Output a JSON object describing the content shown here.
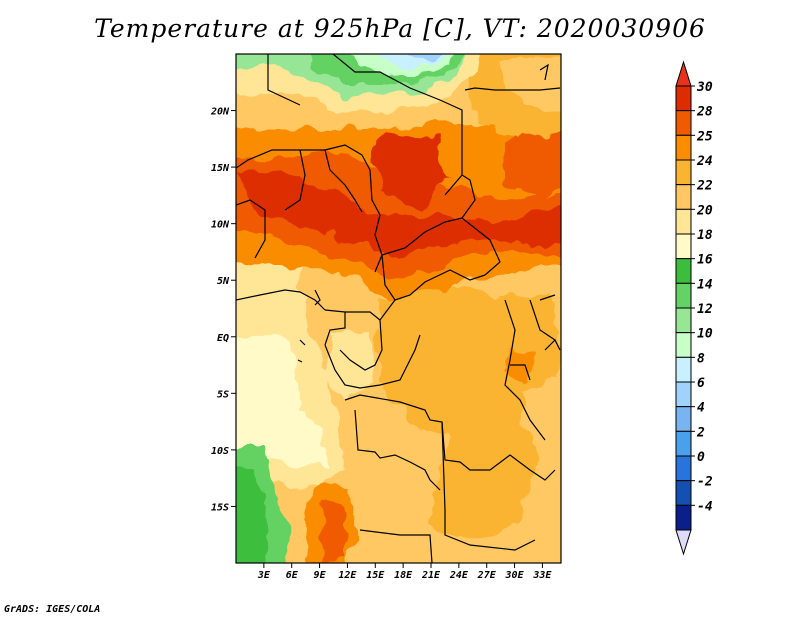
{
  "title": "Temperature at 925hPa [C], VT: 2020030906",
  "footer": "GrADS: IGES/COLA",
  "map": {
    "lon_ticks": [
      "3E",
      "6E",
      "9E",
      "12E",
      "15E",
      "18E",
      "21E",
      "24E",
      "27E",
      "30E",
      "33E"
    ],
    "lat_ticks": [
      "20N",
      "15N",
      "10N",
      "5N",
      "EQ",
      "5S",
      "10S",
      "15S"
    ],
    "lon_range": [
      0,
      35
    ],
    "lat_range": [
      -20,
      25
    ]
  },
  "colorbar": {
    "labels": [
      "30",
      "28",
      "25",
      "24",
      "22",
      "20",
      "18",
      "16",
      "14",
      "12",
      "10",
      "8",
      "6",
      "4",
      "2",
      "0",
      "-2",
      "-4"
    ],
    "colors": [
      "#dc2d00",
      "#f05a00",
      "#fa8c00",
      "#fab432",
      "#ffc864",
      "#ffe696",
      "#fffac8",
      "#3cbe3c",
      "#64d264",
      "#96e696",
      "#c8ffc8",
      "#c8f0ff",
      "#a0d2fa",
      "#78b4f0",
      "#4ba0eb",
      "#2873dc",
      "#1450b4",
      "#0a1e8c"
    ],
    "top_triangle_color": "#e6321e",
    "bottom_triangle_color": "#dcdcfa"
  }
}
